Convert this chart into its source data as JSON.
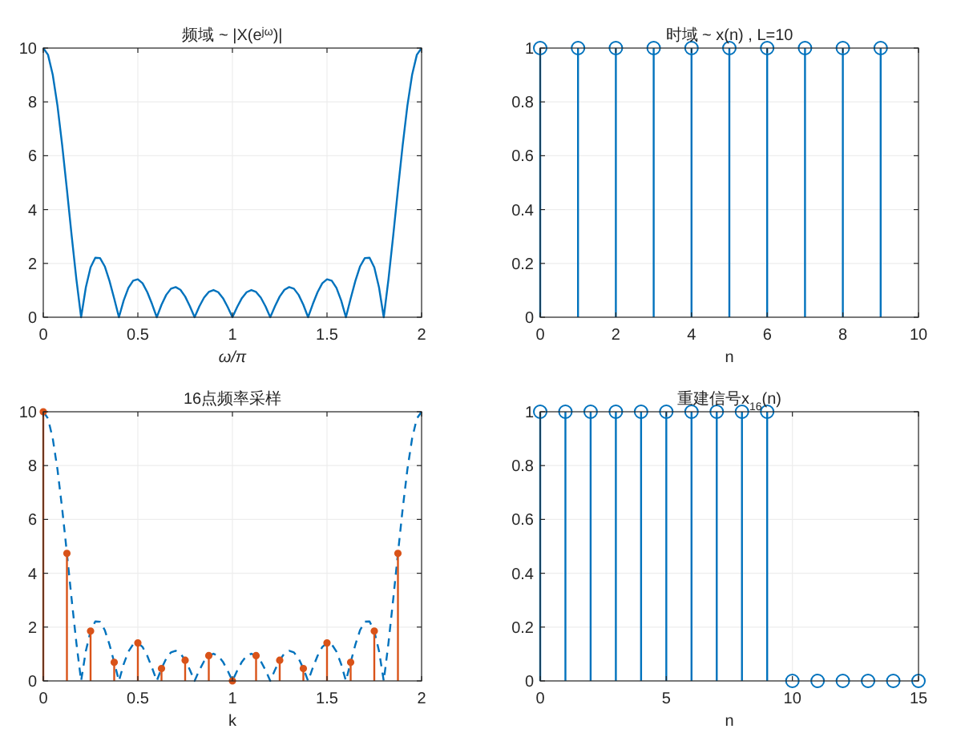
{
  "chart_data": [
    {
      "type": "line",
      "grid": true,
      "title": "频域 ~ |X(e$^{jω}$)|",
      "xlabel": "ω/π",
      "xlim": [
        0,
        2
      ],
      "xticks": [
        0,
        0.5,
        1,
        1.5,
        2
      ],
      "ylim": [
        0,
        10
      ],
      "yticks": [
        0,
        2,
        4,
        6,
        8,
        10
      ],
      "series": [
        {
          "color": "#0072bd",
          "line_style": "solid",
          "x": [
            0,
            0.025,
            0.05,
            0.075,
            0.1,
            0.125,
            0.15,
            0.175,
            0.2,
            0.225,
            0.25,
            0.275,
            0.3,
            0.325,
            0.35,
            0.375,
            0.4,
            0.425,
            0.45,
            0.475,
            0.5,
            0.525,
            0.55,
            0.575,
            0.6,
            0.625,
            0.65,
            0.675,
            0.7,
            0.725,
            0.75,
            0.775,
            0.8,
            0.825,
            0.85,
            0.875,
            0.9,
            0.925,
            0.95,
            0.975,
            1,
            1.025,
            1.05,
            1.075,
            1.1,
            1.125,
            1.15,
            1.175,
            1.2,
            1.225,
            1.25,
            1.275,
            1.3,
            1.325,
            1.35,
            1.375,
            1.4,
            1.425,
            1.45,
            1.475,
            1.5,
            1.525,
            1.55,
            1.575,
            1.6,
            1.625,
            1.65,
            1.675,
            1.7,
            1.725,
            1.75,
            1.775,
            1.8,
            1.825,
            1.85,
            1.875,
            1.9,
            1.925,
            1.95,
            1.975,
            2
          ],
          "values": [
            10,
            9.75,
            9.01,
            7.86,
            6.39,
            4.74,
            3.03,
            1.41,
            0,
            1.11,
            1.85,
            2.21,
            2.2,
            1.89,
            1.35,
            0.69,
            0,
            0.62,
            1.09,
            1.36,
            1.41,
            1.26,
            0.93,
            0.49,
            0,
            0.46,
            0.83,
            1.06,
            1.12,
            1.02,
            0.77,
            0.41,
            0,
            0.4,
            0.73,
            0.94,
            1.01,
            0.93,
            0.71,
            0.38,
            0,
            0.38,
            0.71,
            0.93,
            1.01,
            0.94,
            0.73,
            0.4,
            0,
            0.41,
            0.77,
            1.02,
            1.12,
            1.06,
            0.83,
            0.46,
            0,
            0.49,
            0.93,
            1.26,
            1.41,
            1.36,
            1.09,
            0.62,
            0,
            0.69,
            1.35,
            1.89,
            2.2,
            2.21,
            1.85,
            1.11,
            0,
            1.41,
            3.03,
            4.74,
            6.39,
            7.86,
            9.01,
            9.75,
            10
          ]
        }
      ]
    },
    {
      "type": "lollipop",
      "grid": true,
      "title": "时域 ~ x(n) , L=10",
      "xlabel": "n",
      "xlim": [
        0,
        10
      ],
      "xticks": [
        0,
        2,
        4,
        6,
        8,
        10
      ],
      "ylim": [
        0,
        1
      ],
      "yticks": [
        0,
        0.2,
        0.4,
        0.6,
        0.8,
        1
      ],
      "marker": "circle",
      "series": [
        {
          "color": "#0072bd",
          "x": [
            0,
            1,
            2,
            3,
            4,
            5,
            6,
            7,
            8,
            9
          ],
          "values": [
            1,
            1,
            1,
            1,
            1,
            1,
            1,
            1,
            1,
            1
          ]
        }
      ]
    },
    {
      "type": "line",
      "grid": true,
      "title": "16点频率采样",
      "xlabel": "k",
      "xlim": [
        0,
        2
      ],
      "xticks": [
        0,
        0.5,
        1,
        1.5,
        2
      ],
      "ylim": [
        0,
        10
      ],
      "yticks": [
        0,
        2,
        4,
        6,
        8,
        10
      ],
      "series": [
        {
          "color": "#0072bd",
          "line_style": "dashed",
          "x": [
            0,
            0.025,
            0.05,
            0.075,
            0.1,
            0.125,
            0.15,
            0.175,
            0.2,
            0.225,
            0.25,
            0.275,
            0.3,
            0.325,
            0.35,
            0.375,
            0.4,
            0.425,
            0.45,
            0.475,
            0.5,
            0.525,
            0.55,
            0.575,
            0.6,
            0.625,
            0.65,
            0.675,
            0.7,
            0.725,
            0.75,
            0.775,
            0.8,
            0.825,
            0.85,
            0.875,
            0.9,
            0.925,
            0.95,
            0.975,
            1,
            1.025,
            1.05,
            1.075,
            1.1,
            1.125,
            1.15,
            1.175,
            1.2,
            1.225,
            1.25,
            1.275,
            1.3,
            1.325,
            1.35,
            1.375,
            1.4,
            1.425,
            1.45,
            1.475,
            1.5,
            1.525,
            1.55,
            1.575,
            1.6,
            1.625,
            1.65,
            1.675,
            1.7,
            1.725,
            1.75,
            1.775,
            1.8,
            1.825,
            1.85,
            1.875,
            1.9,
            1.925,
            1.95,
            1.975,
            2
          ],
          "values": [
            10,
            9.75,
            9.01,
            7.86,
            6.39,
            4.74,
            3.03,
            1.41,
            0,
            1.11,
            1.85,
            2.21,
            2.2,
            1.89,
            1.35,
            0.69,
            0,
            0.62,
            1.09,
            1.36,
            1.41,
            1.26,
            0.93,
            0.49,
            0,
            0.46,
            0.83,
            1.06,
            1.12,
            1.02,
            0.77,
            0.41,
            0,
            0.4,
            0.73,
            0.94,
            1.01,
            0.93,
            0.71,
            0.38,
            0,
            0.38,
            0.71,
            0.93,
            1.01,
            0.94,
            0.73,
            0.4,
            0,
            0.41,
            0.77,
            1.02,
            1.12,
            1.06,
            0.83,
            0.46,
            0,
            0.49,
            0.93,
            1.26,
            1.41,
            1.36,
            1.09,
            0.62,
            0,
            0.69,
            1.35,
            1.89,
            2.2,
            2.21,
            1.85,
            1.11,
            0,
            1.41,
            3.03,
            4.74,
            6.39,
            7.86,
            9.01,
            9.75,
            10
          ]
        },
        {
          "type": "lollipop",
          "color": "#d95319",
          "marker": "circle",
          "x": [
            0,
            0.125,
            0.25,
            0.375,
            0.5,
            0.625,
            0.75,
            0.875,
            1,
            1.125,
            1.25,
            1.375,
            1.5,
            1.625,
            1.75,
            1.875
          ],
          "values": [
            10,
            4.74,
            1.85,
            0.69,
            1.41,
            0.46,
            0.77,
            0.94,
            0,
            0.94,
            0.77,
            0.46,
            1.41,
            0.69,
            1.85,
            4.74
          ]
        }
      ]
    },
    {
      "type": "lollipop",
      "grid": true,
      "title": "重建信号x$_{16}$(n)",
      "xlabel": "n",
      "xlim": [
        0,
        15
      ],
      "xticks": [
        0,
        5,
        10,
        15
      ],
      "ylim": [
        0,
        1
      ],
      "yticks": [
        0,
        0.2,
        0.4,
        0.6,
        0.8,
        1
      ],
      "marker": "circle",
      "series": [
        {
          "color": "#0072bd",
          "x": [
            0,
            1,
            2,
            3,
            4,
            5,
            6,
            7,
            8,
            9,
            10,
            11,
            12,
            13,
            14,
            15
          ],
          "values": [
            1,
            1,
            1,
            1,
            1,
            1,
            1,
            1,
            1,
            1,
            0,
            0,
            0,
            0,
            0,
            0
          ]
        }
      ]
    }
  ]
}
